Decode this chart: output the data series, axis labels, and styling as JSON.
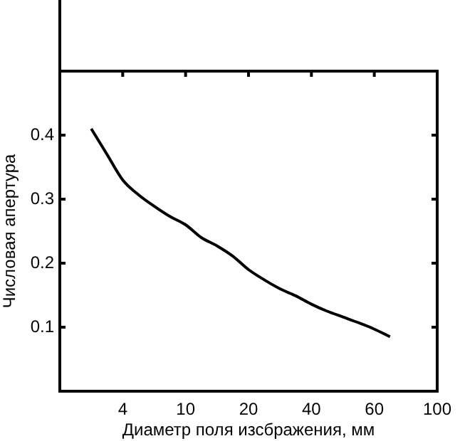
{
  "chart_data": {
    "type": "line",
    "xlabel": "Диаметр поля изсбражения, мм",
    "ylabel": "Числовая апертура",
    "categories": [
      null,
      null,
      null,
      null,
      "4",
      null,
      null,
      null,
      "10",
      null,
      null,
      null,
      "20",
      null,
      null,
      null,
      "40",
      null,
      null,
      null,
      "60",
      null,
      null,
      null,
      "100"
    ],
    "series": [
      {
        "color": "#000000",
        "values": [
          null,
          null,
          0.41,
          0.37,
          0.33,
          0.307,
          0.289,
          0.273,
          0.26,
          0.24,
          0.227,
          0.211,
          0.19,
          0.174,
          0.16,
          0.149,
          0.136,
          0.125,
          0.116,
          0.107,
          0.097,
          0.085,
          null,
          null,
          null
        ]
      }
    ],
    "ylim": [
      0,
      0.5
    ],
    "yticks": [
      0.1,
      0.2,
      0.3,
      0.4
    ],
    "grid": false,
    "legend": false,
    "marker": "none",
    "line_style": "solid"
  }
}
